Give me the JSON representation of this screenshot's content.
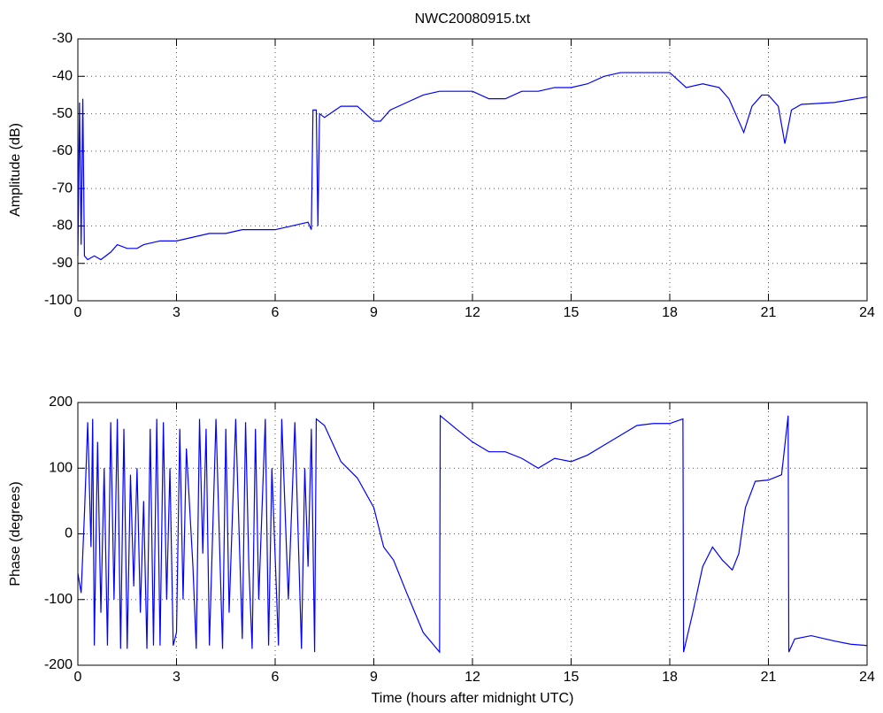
{
  "chart_data": [
    {
      "type": "line",
      "title": "NWC20080915.txt",
      "ylabel": "Amplitude (dB)",
      "grid": true,
      "xlim": [
        0,
        24
      ],
      "xticks": [
        0,
        3,
        6,
        9,
        12,
        15,
        18,
        21,
        24
      ],
      "ylim": [
        -100,
        -30
      ],
      "yticks": [
        -100,
        -90,
        -80,
        -70,
        -60,
        -50,
        -40,
        -30
      ],
      "x": [
        0,
        0.05,
        0.1,
        0.15,
        0.2,
        0.3,
        0.5,
        0.7,
        1.0,
        1.2,
        1.5,
        1.8,
        2.0,
        2.5,
        3.0,
        3.5,
        4.0,
        4.5,
        5.0,
        5.5,
        6.0,
        6.5,
        7.0,
        7.1,
        7.15,
        7.25,
        7.3,
        7.35,
        7.5,
        8.0,
        8.5,
        9.0,
        9.2,
        9.5,
        10.0,
        10.5,
        11.0,
        11.5,
        12.0,
        12.5,
        13.0,
        13.5,
        14.0,
        14.5,
        15.0,
        15.5,
        16.0,
        16.5,
        17.0,
        17.5,
        18.0,
        18.5,
        19.0,
        19.5,
        19.8,
        20.0,
        20.25,
        20.5,
        20.8,
        21.0,
        21.3,
        21.5,
        21.7,
        22.0,
        23.0,
        24
      ],
      "series": [
        {
          "color": "#0000ff",
          "values": [
            -88,
            -47,
            -85,
            -46,
            -88,
            -89,
            -88,
            -89,
            -87,
            -85,
            -86,
            -86,
            -85,
            -84,
            -84,
            -83,
            -82,
            -82,
            -81,
            -81,
            -81,
            -80,
            -79,
            -81,
            -49,
            -49,
            -80,
            -50,
            -51,
            -48,
            -48,
            -52,
            -52,
            -49,
            -47,
            -45,
            -44,
            -44,
            -44,
            -46,
            -46,
            -44,
            -44,
            -43,
            -43,
            -42,
            -40,
            -39,
            -39,
            -39,
            -39,
            -43,
            -42,
            -43,
            -46,
            -50,
            -55,
            -48,
            -45,
            -45,
            -48,
            -58,
            -49,
            -47.5,
            -47,
            -45.5
          ]
        }
      ]
    },
    {
      "type": "line",
      "ylabel": "Phase (degrees)",
      "xlabel": "Time (hours after midnight UTC)",
      "grid": true,
      "xlim": [
        0,
        24
      ],
      "xticks": [
        0,
        3,
        6,
        9,
        12,
        15,
        18,
        21,
        24
      ],
      "ylim": [
        -200,
        200
      ],
      "yticks": [
        -200,
        -100,
        0,
        100,
        200
      ],
      "x": [
        0,
        0.1,
        0.2,
        0.3,
        0.4,
        0.45,
        0.5,
        0.6,
        0.7,
        0.8,
        0.9,
        1.0,
        1.1,
        1.2,
        1.3,
        1.4,
        1.5,
        1.6,
        1.7,
        1.8,
        1.9,
        2.0,
        2.1,
        2.2,
        2.3,
        2.4,
        2.5,
        2.6,
        2.7,
        2.8,
        2.9,
        3.0,
        3.1,
        3.2,
        3.3,
        3.5,
        3.6,
        3.7,
        3.8,
        3.9,
        4.0,
        4.2,
        4.4,
        4.5,
        4.6,
        4.8,
        5.0,
        5.1,
        5.2,
        5.3,
        5.4,
        5.5,
        5.7,
        5.8,
        5.9,
        6.1,
        6.2,
        6.4,
        6.6,
        6.8,
        6.9,
        7.0,
        7.1,
        7.2,
        7.25,
        7.5,
        8.0,
        8.5,
        9.0,
        9.3,
        9.6,
        10.0,
        10.5,
        11.0,
        11.02,
        11.5,
        12.0,
        12.5,
        13.0,
        13.5,
        14.0,
        14.5,
        15.0,
        15.5,
        16.0,
        16.5,
        17.0,
        17.5,
        18.0,
        18.4,
        18.42,
        18.7,
        19.0,
        19.3,
        19.6,
        19.9,
        20.1,
        20.3,
        20.6,
        21.0,
        21.4,
        21.6,
        21.62,
        21.8,
        22.3,
        23.0,
        23.5,
        24
      ],
      "series": [
        {
          "color": "#0000ff",
          "values": [
            -60,
            -90,
            30,
            170,
            -20,
            175,
            -170,
            140,
            -120,
            100,
            -170,
            170,
            -100,
            175,
            -175,
            160,
            -175,
            90,
            -80,
            100,
            -120,
            50,
            -175,
            160,
            -170,
            175,
            -170,
            170,
            -100,
            100,
            -170,
            -150,
            160,
            -100,
            130,
            -50,
            -175,
            175,
            -30,
            160,
            -170,
            175,
            -175,
            160,
            -120,
            175,
            -160,
            170,
            -50,
            -175,
            160,
            -100,
            175,
            -170,
            100,
            -170,
            175,
            -100,
            170,
            -175,
            100,
            -50,
            160,
            -180,
            175,
            165,
            110,
            85,
            40,
            -20,
            -40,
            -90,
            -150,
            -180,
            180,
            160,
            140,
            125,
            125,
            115,
            100,
            115,
            110,
            120,
            135,
            150,
            165,
            168,
            168,
            175,
            -180,
            -120,
            -50,
            -20,
            -40,
            -55,
            -30,
            40,
            80,
            82,
            90,
            180,
            -180,
            -160,
            -155,
            -163,
            -168,
            -170
          ]
        }
      ]
    }
  ]
}
